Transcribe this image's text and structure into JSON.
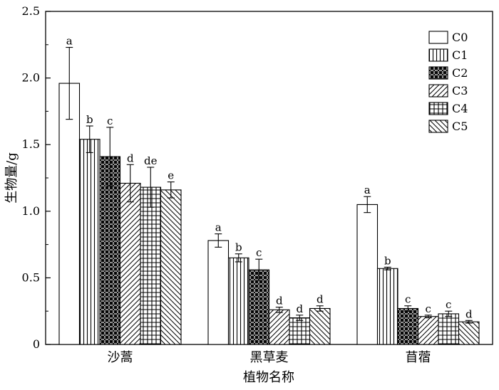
{
  "chart_data": {
    "type": "bar",
    "title": "",
    "xlabel": "植物名称",
    "ylabel": "生物量/g",
    "ylim": [
      0,
      2.5
    ],
    "yticks": [
      "0",
      "0.5",
      "1.0",
      "1.5",
      "2.0",
      "2.5"
    ],
    "ytick_values": [
      0,
      0.5,
      1.0,
      1.5,
      2.0,
      2.5
    ],
    "categories": [
      "沙蒿",
      "黑草麦",
      "苜蓿"
    ],
    "grid": false,
    "legend_position": "top-right",
    "series": [
      {
        "name": "C0",
        "pattern": "blank",
        "values": [
          1.96,
          0.78,
          1.05
        ],
        "errors": [
          0.27,
          0.05,
          0.06
        ],
        "sig": [
          "a",
          "a",
          "a"
        ]
      },
      {
        "name": "C1",
        "pattern": "vertical-lines",
        "values": [
          1.54,
          0.65,
          0.57
        ],
        "errors": [
          0.1,
          0.03,
          0.01
        ],
        "sig": [
          "b",
          "b",
          "b"
        ]
      },
      {
        "name": "C2",
        "pattern": "crosshatch-dense",
        "values": [
          1.41,
          0.56,
          0.27
        ],
        "errors": [
          0.22,
          0.08,
          0.02
        ],
        "sig": [
          "c",
          "c",
          "c"
        ]
      },
      {
        "name": "C3",
        "pattern": "diagonal-up",
        "values": [
          1.21,
          0.26,
          0.21
        ],
        "errors": [
          0.14,
          0.02,
          0.01
        ],
        "sig": [
          "d",
          "d",
          "c"
        ]
      },
      {
        "name": "C4",
        "pattern": "grid",
        "values": [
          1.18,
          0.2,
          0.23
        ],
        "errors": [
          0.15,
          0.02,
          0.02
        ],
        "sig": [
          "de",
          "d",
          "c"
        ]
      },
      {
        "name": "C5",
        "pattern": "diagonal-down",
        "values": [
          1.16,
          0.27,
          0.17
        ],
        "errors": [
          0.06,
          0.02,
          0.01
        ],
        "sig": [
          "e",
          "d",
          "d"
        ]
      }
    ]
  }
}
